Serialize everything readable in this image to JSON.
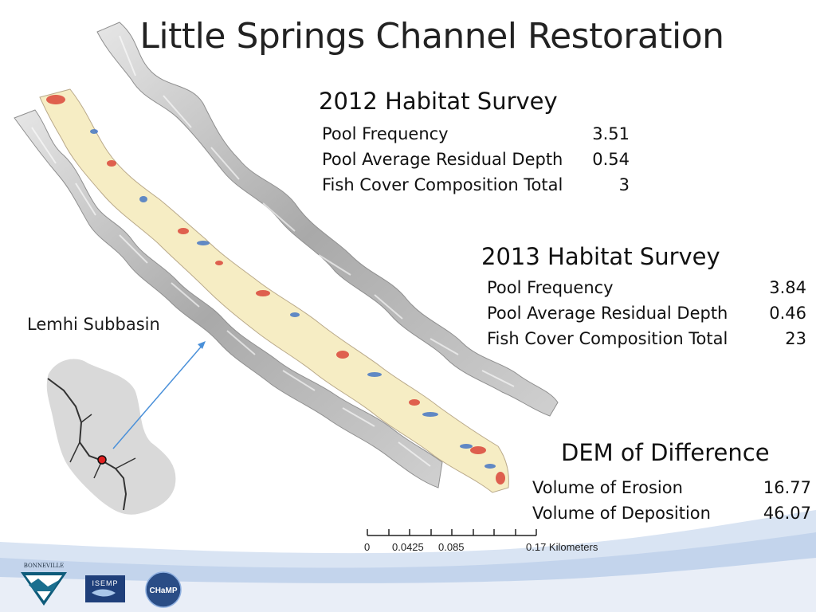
{
  "slide_title": "Little Springs Channel Restoration",
  "survey_2012": {
    "title": "2012 Habitat Survey",
    "rows": [
      {
        "label": "Pool Frequency",
        "value": "3.51"
      },
      {
        "label": "Pool Average Residual Depth",
        "value": "0.54"
      },
      {
        "label": "Fish Cover Composition Total",
        "value": "3"
      }
    ]
  },
  "survey_2013": {
    "title": "2013 Habitat Survey",
    "rows": [
      {
        "label": "Pool Frequency",
        "value": "3.84"
      },
      {
        "label": "Pool Average Residual Depth",
        "value": "0.46"
      },
      {
        "label": "Fish Cover Composition Total",
        "value": "23"
      }
    ]
  },
  "dod": {
    "title": "DEM of Difference",
    "rows": [
      {
        "label": "Volume of Erosion",
        "value": "16.77"
      },
      {
        "label": "Volume of Deposition",
        "value": "46.07"
      }
    ]
  },
  "inset": {
    "label": "Lemhi Subbasin"
  },
  "scale_bar": {
    "ticks": [
      "0",
      "0.0425",
      "0.085",
      "0.17 Kilometers"
    ]
  },
  "logos": {
    "bpa": "BONNEVILLE",
    "isemp": "ISEMP",
    "champ": "CHaMP"
  },
  "colors": {
    "erosion": "#d73027",
    "deposition": "#3b6fc4",
    "hillshade": "#b8b8b8",
    "footer_blue": "#c9d9ee"
  }
}
